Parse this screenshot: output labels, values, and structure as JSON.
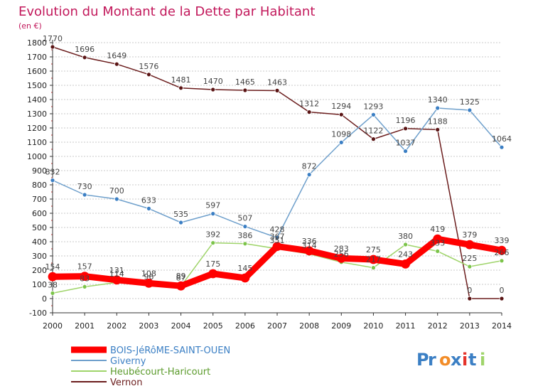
{
  "chart_data": {
    "type": "line",
    "title": "Evolution du Montant de la Dette par Habitant",
    "subtitle": "(en €)",
    "xlabel": "",
    "ylabel": "",
    "x": [
      "2000",
      "2001",
      "2002",
      "2003",
      "2004",
      "2005",
      "2006",
      "2007",
      "2008",
      "2009",
      "2010",
      "2011",
      "2012",
      "2013",
      "2014"
    ],
    "ylim": [
      -100,
      1800
    ],
    "yticks": [
      "-100",
      "0",
      "100",
      "200",
      "300",
      "400",
      "500",
      "600",
      "700",
      "800",
      "900",
      "1000",
      "1100",
      "1200",
      "1300",
      "1400",
      "1500",
      "1600",
      "1700",
      "1800"
    ],
    "grid": true,
    "legend_position": "bottom-left",
    "series": [
      {
        "name": "Vernon",
        "color": "#6b1d1d",
        "values": [
          1770,
          1696,
          1649,
          1576,
          1481,
          1470,
          1465,
          1463,
          1312,
          1294,
          1122,
          1196,
          1188,
          0,
          0
        ],
        "labels": [
          "1770",
          "1696",
          "1649",
          "1576",
          "1481",
          "1470",
          "1465",
          "1463",
          "1312",
          "1294",
          "1122",
          "1196",
          "1188",
          "0",
          "0"
        ]
      },
      {
        "name": "Giverny",
        "color": "#6fa0cc",
        "values": [
          832,
          730,
          700,
          633,
          535,
          597,
          507,
          428,
          872,
          1098,
          1293,
          1037,
          1340,
          1325,
          1064
        ],
        "labels": [
          "832",
          "730",
          "700",
          "633",
          "535",
          "597",
          "507",
          "428",
          "872",
          "1098",
          "1293",
          "1037",
          "1340",
          "1325",
          "1064"
        ]
      },
      {
        "name": "Heubécourt-Haricourt",
        "color": "#9fd46a",
        "values": [
          38,
          83,
          114,
          96,
          87,
          392,
          386,
          351,
          314,
          256,
          217,
          380,
          333,
          225,
          266
        ],
        "labels": [
          "38",
          "83",
          "114",
          "96",
          "87",
          "392",
          "386",
          "351",
          "314",
          "256",
          "217",
          "380",
          "333",
          "225",
          "266"
        ]
      },
      {
        "name": "BOIS-JéRôME-SAINT-OUEN",
        "color": "#ff0000",
        "values": [
          154,
          157,
          131,
          108,
          89,
          175,
          145,
          367,
          336,
          283,
          275,
          243,
          419,
          379,
          339
        ],
        "labels": [
          "154",
          "157",
          "131",
          "108",
          "89",
          "175",
          "145",
          "367",
          "336",
          "283",
          "275",
          "243",
          "419",
          "379",
          "339"
        ]
      }
    ],
    "legend_order": [
      "BOIS-JéRôME-SAINT-OUEN",
      "Giverny",
      "Heubécourt-Haricourt",
      "Vernon"
    ],
    "colors": {
      "title": "#c2185b",
      "axis_text": "#222222",
      "label_text": "#444444",
      "grid": "#c8c8c8",
      "axis": "#333333"
    }
  },
  "logo": {
    "text": "Proxiti"
  }
}
